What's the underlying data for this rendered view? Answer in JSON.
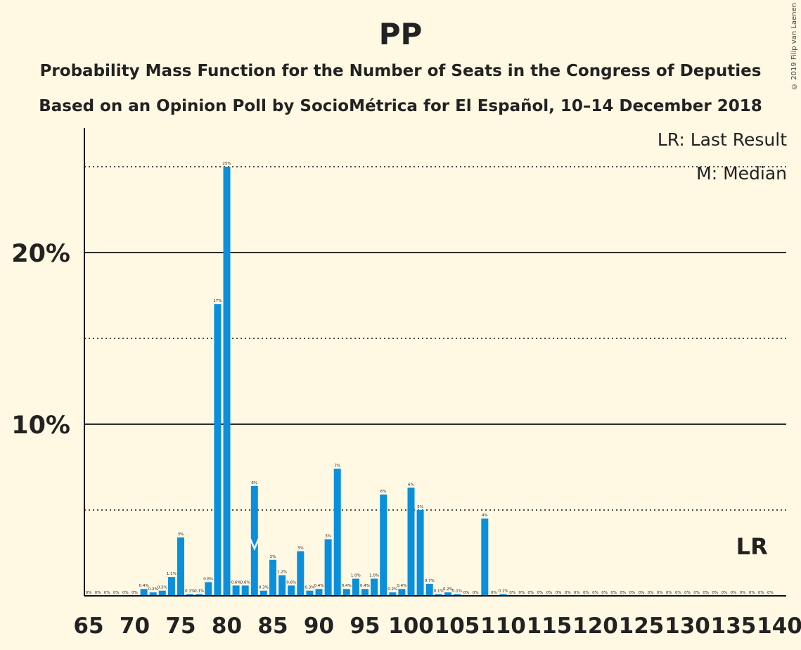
{
  "title": "PP",
  "subtitle1": "Probability Mass Function for the Number of Seats in the Congress of Deputies",
  "subtitle2": "Based on an Opinion Poll by SocioMétrica for El Español, 10–14 December 2018",
  "copyright": "© 2019 Filip van Laenen",
  "legend": {
    "lr": "LR: Last Result",
    "m": "M: Median"
  },
  "colors": {
    "bar": "#0a8fdd",
    "background": "#fff8e3",
    "text": "#222222"
  },
  "chart_data": {
    "type": "bar",
    "title": "PP",
    "x": [
      65,
      66,
      67,
      68,
      69,
      70,
      71,
      72,
      73,
      74,
      75,
      76,
      77,
      78,
      79,
      80,
      81,
      82,
      83,
      84,
      85,
      86,
      87,
      88,
      89,
      90,
      91,
      92,
      93,
      94,
      95,
      96,
      97,
      98,
      99,
      100,
      101,
      102,
      103,
      104,
      105,
      106,
      107,
      108,
      109,
      110,
      111,
      112,
      113,
      114,
      115,
      116,
      117,
      118,
      119,
      120,
      121,
      122,
      123,
      124,
      125,
      126,
      127,
      128,
      129,
      130,
      131,
      132,
      133,
      134,
      135,
      136,
      137,
      138,
      139,
      140
    ],
    "values": [
      0,
      0,
      0,
      0,
      0,
      0,
      0.4,
      0.2,
      0.3,
      1.1,
      3.4,
      0.1,
      0.1,
      0.8,
      17,
      25,
      0.6,
      0.6,
      6.4,
      0.3,
      2.1,
      1.2,
      0.6,
      2.6,
      0.3,
      0.4,
      3.3,
      7.4,
      0.4,
      1.0,
      0.4,
      1.0,
      5.9,
      0.2,
      0.4,
      6.3,
      5.0,
      0.7,
      0.1,
      0.2,
      0.1,
      0,
      0,
      4.5,
      0,
      0.1,
      0,
      0,
      0,
      0,
      0,
      0,
      0,
      0,
      0,
      0,
      0,
      0,
      0,
      0,
      0,
      0,
      0,
      0,
      0,
      0,
      0,
      0,
      0,
      0,
      0,
      0,
      0,
      0,
      0,
      0
    ],
    "labels": [
      "0%",
      "0%",
      "0%",
      "0%",
      "0%",
      "0%",
      "0.4%",
      "0.2%",
      "0.3%",
      "1.1%",
      "3%",
      "0.1%",
      "0.1%",
      "0.8%",
      "17%",
      "25%",
      "0.6%",
      "0.6%",
      "6%",
      "0.3%",
      "2%",
      "1.2%",
      "0.6%",
      "3%",
      "0.3%",
      "0.4%",
      "3%",
      "7%",
      "0.4%",
      "1.0%",
      "0.4%",
      "1.0%",
      "6%",
      "0.2%",
      "0.4%",
      "6%",
      "5%",
      "0.7%",
      "0.1%",
      "0.2%",
      "0.1%",
      "0%",
      "0%",
      "4%",
      "0%",
      "0.1%",
      "0%",
      "0%",
      "0%",
      "0%",
      "0%",
      "0%",
      "0%",
      "0%",
      "0%",
      "0%",
      "0%",
      "0%",
      "0%",
      "0%",
      "0%",
      "0%",
      "0%",
      "0%",
      "0%",
      "0%",
      "0%",
      "0%",
      "0%",
      "0%",
      "0%",
      "0%",
      "0%",
      "0%",
      "0%",
      ""
    ],
    "xticks": [
      "65",
      "70",
      "75",
      "80",
      "85",
      "90",
      "95",
      "100",
      "105",
      "110",
      "115",
      "120",
      "125",
      "130",
      "135",
      "140"
    ],
    "yticks": [
      "10%",
      "20%"
    ],
    "ylim": [
      0,
      27
    ],
    "median_seat": 83,
    "median_marker": "M",
    "last_result_seat": 137,
    "last_result_label": "LR",
    "solid_gridlines": [
      10,
      20
    ],
    "dotted_gridlines": [
      5,
      15,
      25
    ]
  }
}
